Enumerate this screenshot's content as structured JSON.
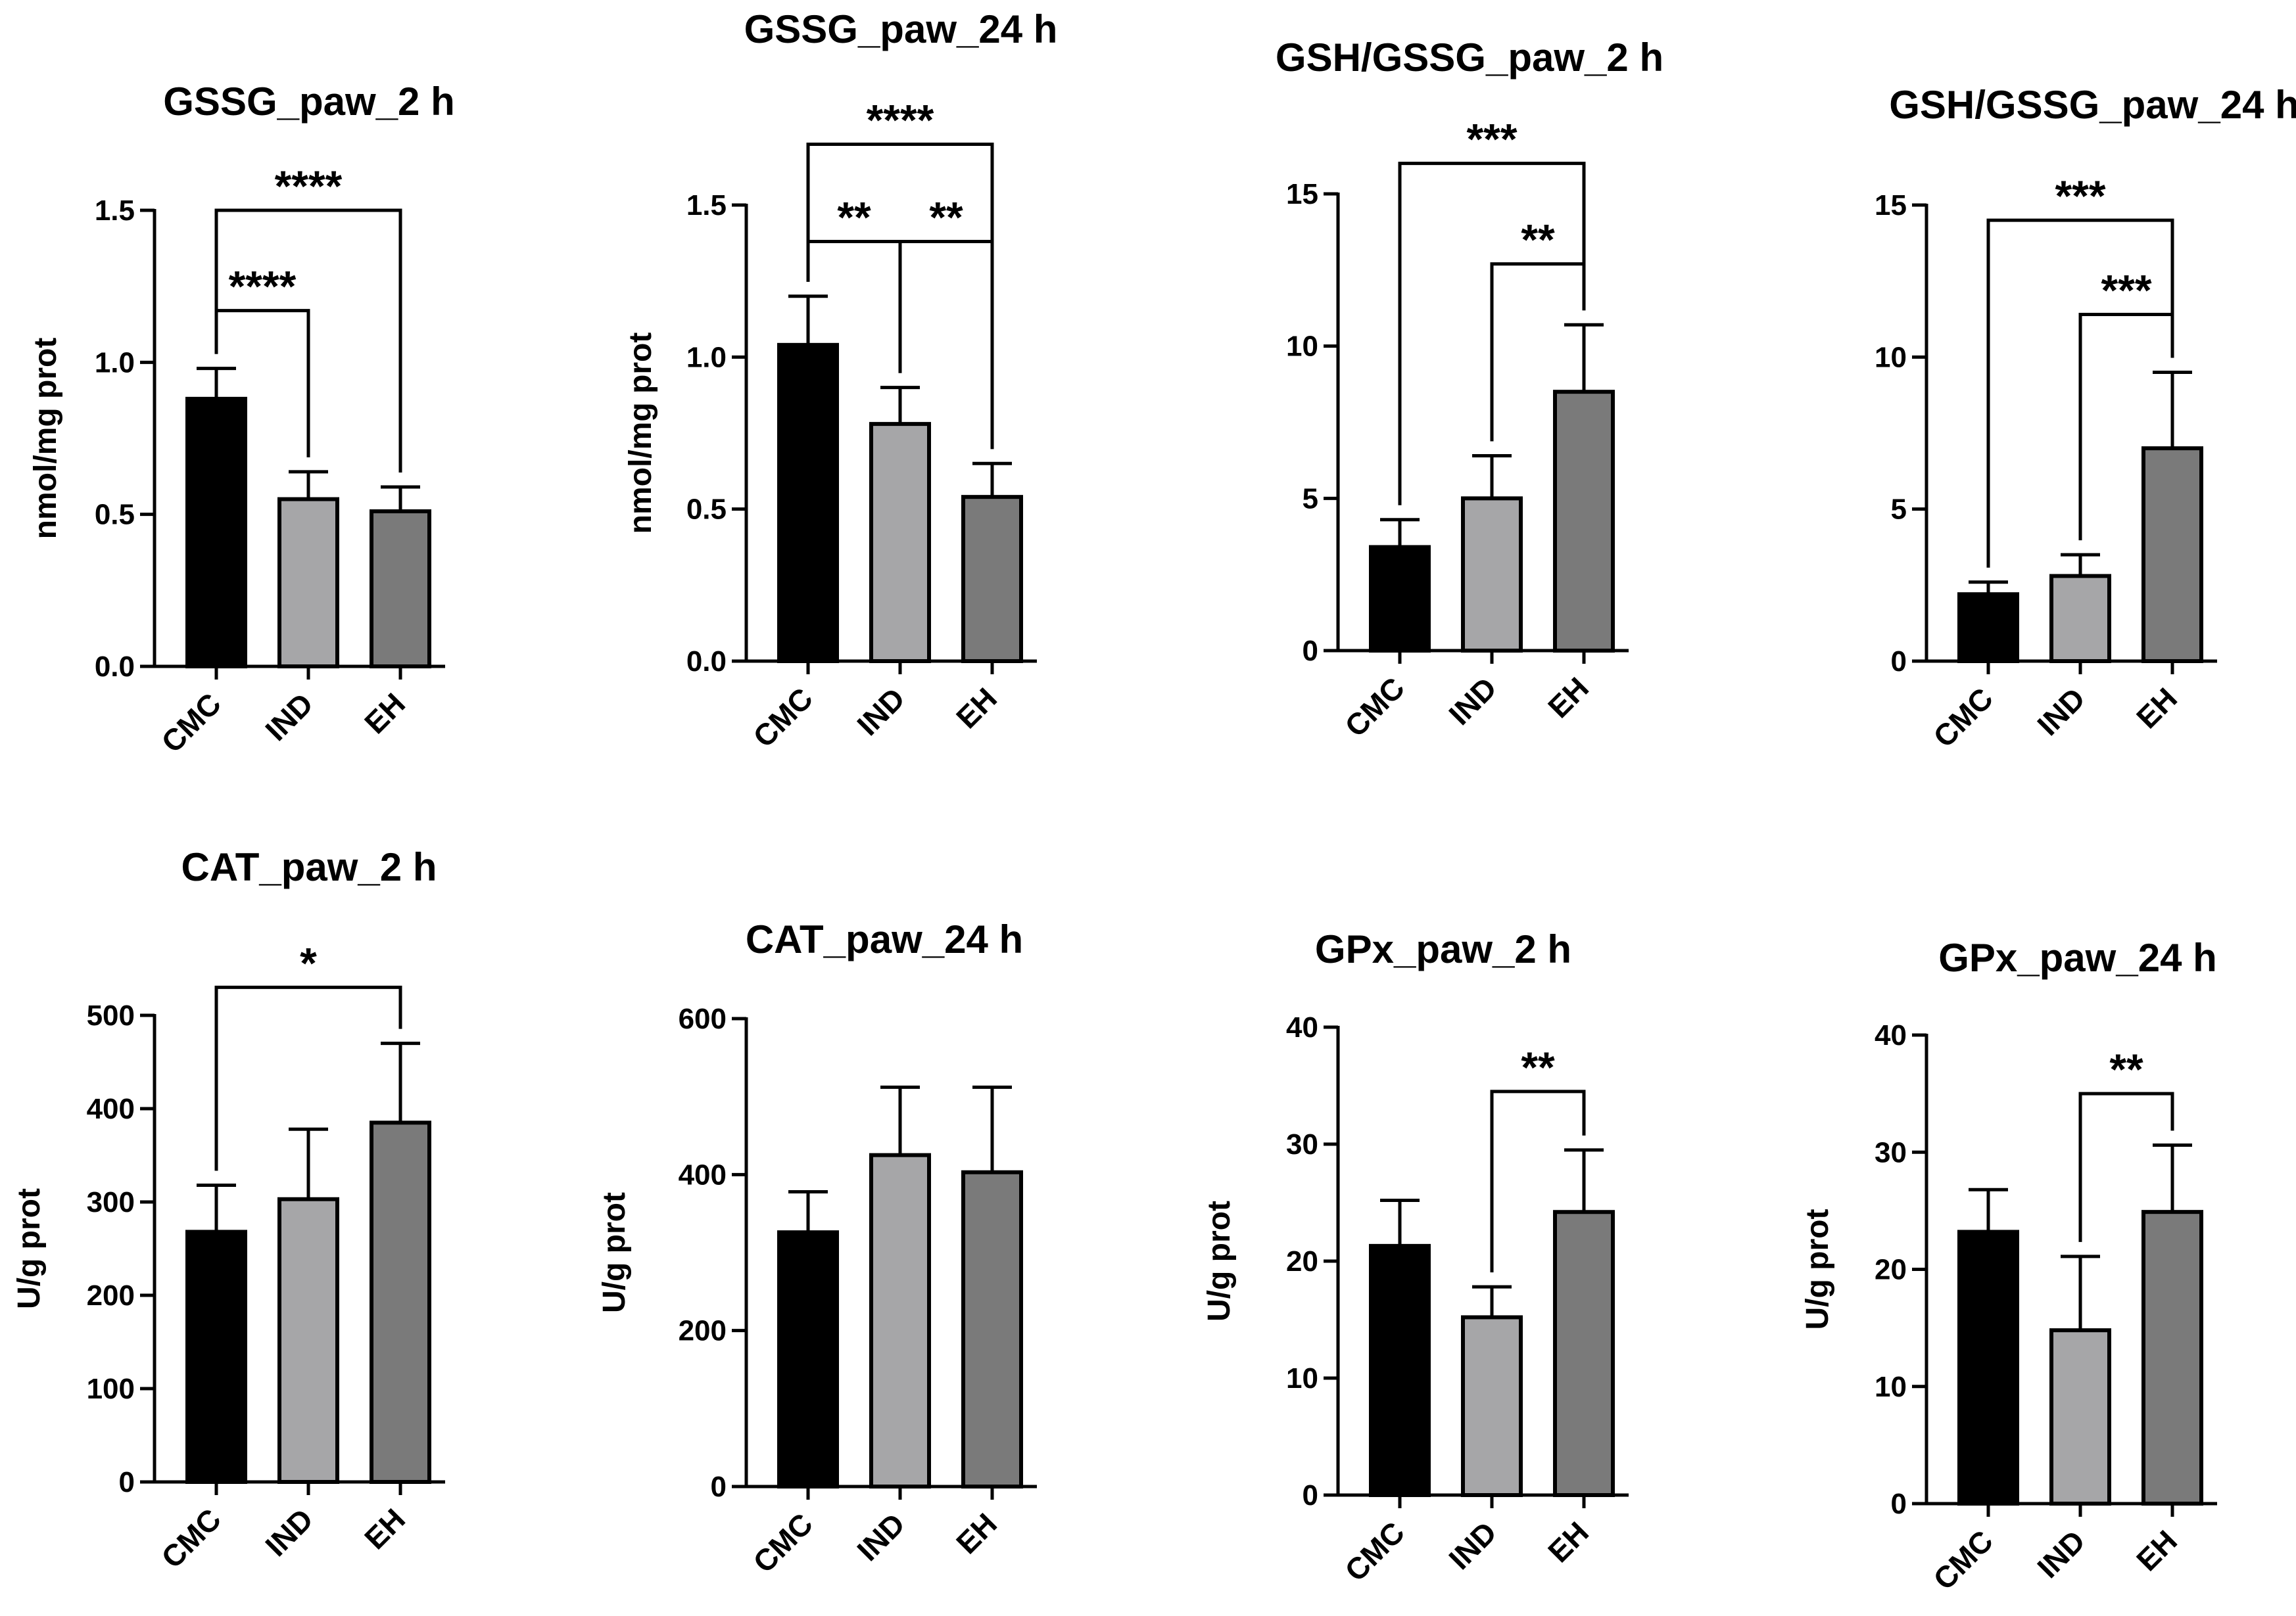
{
  "chart_data": [
    {
      "type": "bar",
      "title": "GSSG_paw_2 h",
      "ylabel": "nmol/mg prot",
      "categories": [
        "CMC",
        "IND",
        "EH"
      ],
      "values": [
        0.88,
        0.55,
        0.51
      ],
      "errors": [
        0.1,
        0.09,
        0.08
      ],
      "ylim": [
        0,
        1.5
      ],
      "yticks": [
        "0.0",
        "0.5",
        "1.0",
        "1.5"
      ],
      "colors": [
        "#000000",
        "#a6a6a8",
        "#7a7a7a"
      ],
      "significance": [
        {
          "from": 0,
          "to": 2,
          "label": "****",
          "y": 1.5
        },
        {
          "from": 0,
          "to": 1,
          "label": "****",
          "y": 1.17
        }
      ]
    },
    {
      "type": "bar",
      "title": "GSSG_paw_24 h",
      "ylabel": "nmol/mg prot",
      "categories": [
        "CMC",
        "IND",
        "EH"
      ],
      "values": [
        1.04,
        0.78,
        0.54
      ],
      "errors": [
        0.16,
        0.12,
        0.11
      ],
      "ylim": [
        0,
        1.5
      ],
      "yticks": [
        "0.0",
        "0.5",
        "1.0",
        "1.5"
      ],
      "colors": [
        "#000000",
        "#a6a6a8",
        "#7a7a7a"
      ],
      "significance": [
        {
          "from": 0,
          "to": 2,
          "label": "****",
          "y": 1.7
        },
        {
          "from": 0,
          "to": 1,
          "label": "**",
          "y": 1.38
        },
        {
          "from": 1,
          "to": 2,
          "label": "**",
          "y": 1.38
        }
      ]
    },
    {
      "type": "bar",
      "title": "GSH/GSSG_paw_2 h",
      "ylabel": "",
      "categories": [
        "CMC",
        "IND",
        "EH"
      ],
      "values": [
        3.4,
        5.0,
        8.5
      ],
      "errors": [
        0.9,
        1.4,
        2.2
      ],
      "ylim": [
        0,
        15
      ],
      "yticks": [
        "0",
        "5",
        "10",
        "15"
      ],
      "colors": [
        "#000000",
        "#a6a6a8",
        "#7a7a7a"
      ],
      "significance": [
        {
          "from": 0,
          "to": 2,
          "label": "***",
          "y": 16.0
        },
        {
          "from": 1,
          "to": 2,
          "label": "**",
          "y": 12.7
        }
      ]
    },
    {
      "type": "bar",
      "title": "GSH/GSSG_paw_24 h",
      "ylabel": "",
      "categories": [
        "CMC",
        "IND",
        "EH"
      ],
      "values": [
        2.2,
        2.8,
        7.0
      ],
      "errors": [
        0.4,
        0.7,
        2.5
      ],
      "ylim": [
        0,
        15
      ],
      "yticks": [
        "0",
        "5",
        "10",
        "15"
      ],
      "colors": [
        "#000000",
        "#a6a6a8",
        "#7a7a7a"
      ],
      "significance": [
        {
          "from": 0,
          "to": 2,
          "label": "***",
          "y": 14.5
        },
        {
          "from": 1,
          "to": 2,
          "label": "***",
          "y": 11.4
        }
      ]
    },
    {
      "type": "bar",
      "title": "CAT_paw_2 h",
      "ylabel": "U/g prot",
      "categories": [
        "CMC",
        "IND",
        "EH"
      ],
      "values": [
        268,
        303,
        385
      ],
      "errors": [
        50,
        75,
        85
      ],
      "ylim": [
        0,
        500
      ],
      "yticks": [
        "0",
        "100",
        "200",
        "300",
        "400",
        "500"
      ],
      "colors": [
        "#000000",
        "#a6a6a8",
        "#7a7a7a"
      ],
      "significance": [
        {
          "from": 0,
          "to": 2,
          "label": "*",
          "y": 530
        }
      ]
    },
    {
      "type": "bar",
      "title": "CAT_paw_24 h",
      "ylabel": "U/g prot",
      "categories": [
        "CMC",
        "IND",
        "EH"
      ],
      "values": [
        326,
        425,
        403
      ],
      "errors": [
        52,
        87,
        109
      ],
      "ylim": [
        0,
        600
      ],
      "yticks": [
        "0",
        "200",
        "400",
        "600"
      ],
      "colors": [
        "#000000",
        "#a6a6a8",
        "#7a7a7a"
      ],
      "significance": []
    },
    {
      "type": "bar",
      "title": "GPx_paw_2 h",
      "ylabel": "U/g prot",
      "categories": [
        "CMC",
        "IND",
        "EH"
      ],
      "values": [
        21.3,
        15.2,
        24.2
      ],
      "errors": [
        3.9,
        2.6,
        5.3
      ],
      "ylim": [
        0,
        40
      ],
      "yticks": [
        "0",
        "10",
        "20",
        "30",
        "40"
      ],
      "colors": [
        "#000000",
        "#a6a6a8",
        "#7a7a7a"
      ],
      "significance": [
        {
          "from": 1,
          "to": 2,
          "label": "**",
          "y": 34.5
        }
      ]
    },
    {
      "type": "bar",
      "title": "GPx_paw_24 h",
      "ylabel": "U/g prot",
      "categories": [
        "CMC",
        "IND",
        "EH"
      ],
      "values": [
        23.2,
        14.8,
        24.9
      ],
      "errors": [
        3.6,
        6.3,
        5.7
      ],
      "ylim": [
        0,
        40
      ],
      "yticks": [
        "0",
        "10",
        "20",
        "30",
        "40"
      ],
      "colors": [
        "#000000",
        "#a6a6a8",
        "#7a7a7a"
      ],
      "significance": [
        {
          "from": 1,
          "to": 2,
          "label": "**",
          "y": 35.0
        }
      ]
    }
  ]
}
